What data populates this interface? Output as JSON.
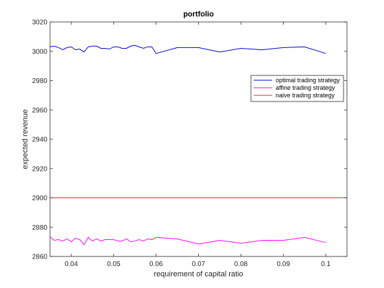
{
  "chart_data": {
    "type": "line",
    "title": "portfolio",
    "xlabel": "requirement of capital ratio",
    "ylabel": "expected revenue",
    "xlim": [
      0.035,
      0.105
    ],
    "ylim": [
      2860,
      3020
    ],
    "xticks": [
      0.04,
      0.05,
      0.06,
      0.07,
      0.08,
      0.09,
      0.1
    ],
    "xtick_labels": [
      "0.04",
      "0.05",
      "0.06",
      "0.07",
      "0.08",
      "0.09",
      "0.1"
    ],
    "yticks": [
      2860,
      2880,
      2900,
      2920,
      2940,
      2960,
      2980,
      3000,
      3020
    ],
    "ytick_labels": [
      "2860",
      "2880",
      "2900",
      "2920",
      "2940",
      "2960",
      "2980",
      "3000",
      "3020"
    ],
    "grid": false,
    "legend_position": "right",
    "series": [
      {
        "name": "optimal trading strategy",
        "color": "#0000cc",
        "x": [
          0.035,
          0.036,
          0.037,
          0.038,
          0.039,
          0.04,
          0.041,
          0.042,
          0.043,
          0.044,
          0.045,
          0.046,
          0.047,
          0.048,
          0.049,
          0.05,
          0.051,
          0.052,
          0.053,
          0.054,
          0.055,
          0.056,
          0.057,
          0.058,
          0.059,
          0.06,
          0.065,
          0.07,
          0.075,
          0.08,
          0.085,
          0.09,
          0.095,
          0.1
        ],
        "y": [
          3003,
          3003.5,
          3002.5,
          3001,
          3002.5,
          3003,
          3001,
          3001.5,
          2999.5,
          3003,
          3003.5,
          3003.5,
          3002,
          3002,
          3001.5,
          3003,
          3003,
          3002,
          3002,
          3003.5,
          3004,
          3003,
          3002,
          3003,
          3003,
          2998.5,
          3002.5,
          3002.5,
          2999.5,
          3002,
          3001,
          3002.5,
          3003,
          2998.5
        ]
      },
      {
        "name": "affine trading strategy",
        "color": "#ff00ff",
        "x": [
          0.035,
          0.036,
          0.037,
          0.038,
          0.039,
          0.04,
          0.041,
          0.042,
          0.043,
          0.044,
          0.045,
          0.046,
          0.047,
          0.048,
          0.049,
          0.05,
          0.051,
          0.052,
          0.053,
          0.054,
          0.055,
          0.056,
          0.057,
          0.058,
          0.059,
          0.06,
          0.065,
          0.07,
          0.075,
          0.08,
          0.085,
          0.09,
          0.095,
          0.1
        ],
        "y": [
          2873.5,
          2871,
          2871.5,
          2870.5,
          2872,
          2870,
          2872.5,
          2871.5,
          2868,
          2873,
          2870.5,
          2872,
          2870.5,
          2871.5,
          2871.5,
          2871.5,
          2870.5,
          2870.5,
          2872,
          2870,
          2870.5,
          2871.5,
          2870.5,
          2872,
          2871.5,
          2873,
          2872,
          2868.5,
          2871,
          2869,
          2871,
          2871,
          2873,
          2869.5
        ]
      },
      {
        "name": "naive trading strategy",
        "color": "#cc3333",
        "x": [
          0.035,
          0.105
        ],
        "y": [
          2900,
          2900
        ]
      }
    ]
  }
}
